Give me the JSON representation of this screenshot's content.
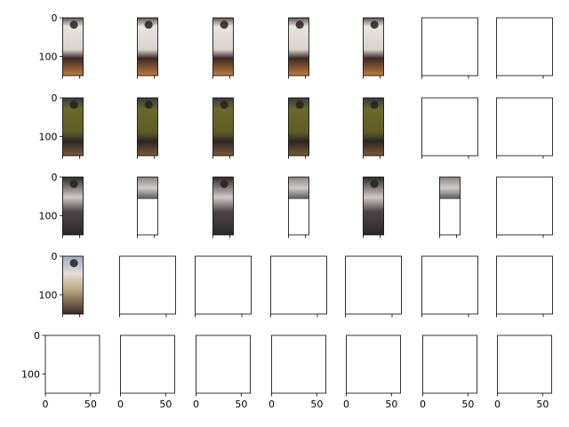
{
  "chart_data": {
    "type": "image_grid",
    "rows": 5,
    "cols": 7,
    "image_colors": {
      "white_shirt": "#e8e4e0",
      "dark_pants": "#3a2a26",
      "warm_floor": "#c07a3a",
      "olive_shirt": "#6b6a2a",
      "dark_bg": "#2d2a2c",
      "gray_bg": "#8a8586",
      "sky_blue_bg": "#9aaec8",
      "photo_bg": "#b8a27a"
    },
    "subplots": [
      {
        "row": 0,
        "col": 0,
        "kind": "image",
        "palette": "white_shirt_warm",
        "x_ticks": [],
        "y_ticks": [
          0,
          100
        ]
      },
      {
        "row": 0,
        "col": 1,
        "kind": "image",
        "palette": "white_shirt_warm",
        "x_ticks": [],
        "y_ticks": []
      },
      {
        "row": 0,
        "col": 2,
        "kind": "image",
        "palette": "white_shirt_warm",
        "x_ticks": [],
        "y_ticks": []
      },
      {
        "row": 0,
        "col": 3,
        "kind": "image",
        "palette": "white_shirt_warm",
        "x_ticks": [],
        "y_ticks": []
      },
      {
        "row": 0,
        "col": 4,
        "kind": "image",
        "palette": "white_shirt_warm",
        "x_ticks": [],
        "y_ticks": []
      },
      {
        "row": 0,
        "col": 5,
        "kind": "empty",
        "x_ticks": [],
        "y_ticks": []
      },
      {
        "row": 0,
        "col": 6,
        "kind": "empty",
        "x_ticks": [],
        "y_ticks": []
      },
      {
        "row": 1,
        "col": 0,
        "kind": "image",
        "palette": "olive_shirt",
        "x_ticks": [],
        "y_ticks": [
          0,
          100
        ]
      },
      {
        "row": 1,
        "col": 1,
        "kind": "image",
        "palette": "olive_shirt",
        "x_ticks": [],
        "y_ticks": []
      },
      {
        "row": 1,
        "col": 2,
        "kind": "image",
        "palette": "olive_shirt",
        "x_ticks": [],
        "y_ticks": []
      },
      {
        "row": 1,
        "col": 3,
        "kind": "image",
        "palette": "olive_shirt",
        "x_ticks": [],
        "y_ticks": []
      },
      {
        "row": 1,
        "col": 4,
        "kind": "image",
        "palette": "olive_shirt",
        "x_ticks": [],
        "y_ticks": []
      },
      {
        "row": 1,
        "col": 5,
        "kind": "empty",
        "x_ticks": [],
        "y_ticks": []
      },
      {
        "row": 1,
        "col": 6,
        "kind": "empty",
        "x_ticks": [],
        "y_ticks": []
      },
      {
        "row": 2,
        "col": 0,
        "kind": "image",
        "palette": "dark_walker",
        "x_ticks": [],
        "y_ticks": [
          0,
          100
        ]
      },
      {
        "row": 2,
        "col": 1,
        "kind": "partial_image",
        "palette": "gray_walker",
        "x_ticks": [],
        "y_ticks": []
      },
      {
        "row": 2,
        "col": 2,
        "kind": "image",
        "palette": "dark_walker",
        "x_ticks": [],
        "y_ticks": []
      },
      {
        "row": 2,
        "col": 3,
        "kind": "partial_image",
        "palette": "gray_walker",
        "x_ticks": [],
        "y_ticks": []
      },
      {
        "row": 2,
        "col": 4,
        "kind": "image",
        "palette": "dark_walker",
        "x_ticks": [],
        "y_ticks": []
      },
      {
        "row": 2,
        "col": 5,
        "kind": "partial_image",
        "palette": "gray_walker",
        "x_ticks": [],
        "y_ticks": []
      },
      {
        "row": 2,
        "col": 6,
        "kind": "empty",
        "x_ticks": [],
        "y_ticks": []
      },
      {
        "row": 3,
        "col": 0,
        "kind": "image",
        "palette": "photo_walker",
        "x_ticks": [],
        "y_ticks": [
          0,
          100
        ]
      },
      {
        "row": 3,
        "col": 1,
        "kind": "empty",
        "x_ticks": [],
        "y_ticks": []
      },
      {
        "row": 3,
        "col": 2,
        "kind": "empty",
        "x_ticks": [],
        "y_ticks": []
      },
      {
        "row": 3,
        "col": 3,
        "kind": "empty",
        "x_ticks": [],
        "y_ticks": []
      },
      {
        "row": 3,
        "col": 4,
        "kind": "empty",
        "x_ticks": [],
        "y_ticks": []
      },
      {
        "row": 3,
        "col": 5,
        "kind": "empty",
        "x_ticks": [],
        "y_ticks": []
      },
      {
        "row": 3,
        "col": 6,
        "kind": "empty",
        "x_ticks": [],
        "y_ticks": []
      },
      {
        "row": 4,
        "col": 0,
        "kind": "empty",
        "x_ticks": [
          0,
          50
        ],
        "y_ticks": [
          0,
          100
        ]
      },
      {
        "row": 4,
        "col": 1,
        "kind": "empty",
        "x_ticks": [
          0,
          50
        ],
        "y_ticks": []
      },
      {
        "row": 4,
        "col": 2,
        "kind": "empty",
        "x_ticks": [
          0,
          50
        ],
        "y_ticks": []
      },
      {
        "row": 4,
        "col": 3,
        "kind": "empty",
        "x_ticks": [
          0,
          50
        ],
        "y_ticks": []
      },
      {
        "row": 4,
        "col": 4,
        "kind": "empty",
        "x_ticks": [
          0,
          50
        ],
        "y_ticks": []
      },
      {
        "row": 4,
        "col": 5,
        "kind": "empty",
        "x_ticks": [
          0,
          50
        ],
        "y_ticks": []
      },
      {
        "row": 4,
        "col": 6,
        "kind": "empty",
        "x_ticks": [
          0,
          50
        ],
        "y_ticks": []
      }
    ]
  }
}
